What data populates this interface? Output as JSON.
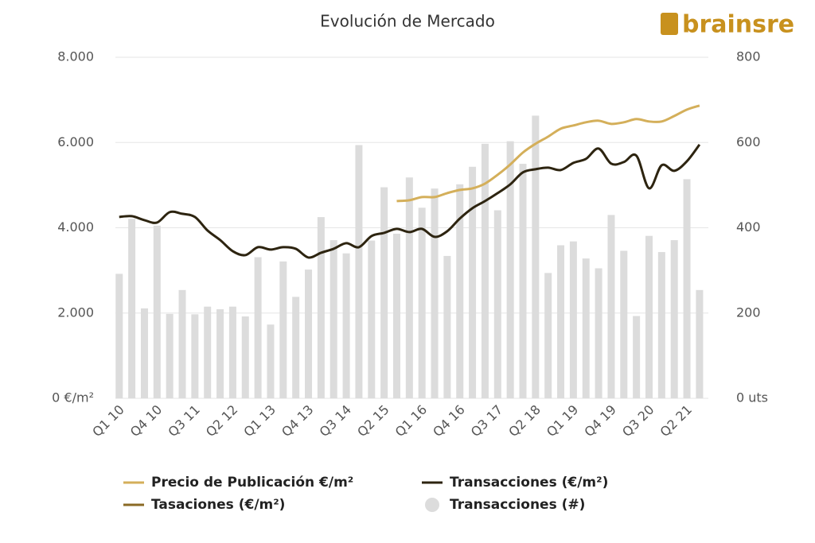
{
  "logo": "brainsre",
  "chart_data": {
    "type": "bar-line",
    "title": "Evolución de Mercado",
    "categories": [
      "Q1 10",
      null,
      null,
      "Q4 10",
      null,
      null,
      "Q3 11",
      null,
      null,
      "Q2 12",
      null,
      null,
      "Q1 13",
      null,
      null,
      "Q4 13",
      null,
      null,
      "Q3 14",
      null,
      null,
      "Q2 15",
      null,
      null,
      "Q1 16",
      null,
      null,
      "Q4 16",
      null,
      null,
      "Q3 17",
      null,
      null,
      "Q2 18",
      null,
      null,
      "Q1 19",
      null,
      null,
      "Q4 19",
      null,
      null,
      "Q3 20",
      null,
      null,
      "Q2 21",
      null
    ],
    "series": [
      {
        "name": "Precio de Publicación €/m²",
        "type": "line",
        "color": "#d4af5a",
        "values": [
          null,
          null,
          null,
          null,
          null,
          null,
          null,
          null,
          null,
          null,
          null,
          null,
          null,
          null,
          null,
          null,
          null,
          null,
          null,
          null,
          null,
          null,
          4627,
          4646,
          4720,
          4720,
          4813,
          4888,
          4925,
          5037,
          5243,
          5485,
          5765,
          5970,
          6138,
          6325,
          6399,
          6474,
          6511,
          6437,
          6474,
          6549,
          6493,
          6493,
          6623,
          6772,
          6866
        ]
      },
      {
        "name": "Transacciones (€/m²)",
        "type": "line",
        "color": "#2d2410",
        "values": [
          4254,
          4272,
          4179,
          4123,
          4366,
          4328,
          4254,
          3937,
          3713,
          3451,
          3358,
          3545,
          3489,
          3545,
          3507,
          3302,
          3414,
          3507,
          3638,
          3545,
          3806,
          3881,
          3974,
          3899,
          3974,
          3787,
          3918,
          4216,
          4459,
          4627,
          4813,
          5019,
          5299,
          5373,
          5410,
          5354,
          5522,
          5616,
          5858,
          5504,
          5541,
          5690,
          4925,
          5466,
          5336,
          5560,
          5951
        ]
      },
      {
        "name": "Tasaciones (€/m²)",
        "type": "line",
        "color": "#8a6a24",
        "values": [
          null,
          null,
          null,
          null,
          null,
          null,
          null,
          null,
          null,
          null,
          null,
          null,
          null,
          null,
          null,
          null,
          null,
          null,
          null,
          null,
          null,
          null,
          null,
          null,
          null,
          null,
          null,
          null,
          null,
          null,
          null,
          null,
          null,
          null,
          null,
          null,
          null,
          null,
          null,
          null,
          null,
          null,
          null,
          null,
          null,
          null,
          null
        ]
      },
      {
        "name": "Transacciones (#)",
        "type": "bar",
        "axis": "y2",
        "color": "#dcdcdc",
        "values": [
          292,
          421,
          211,
          405,
          198,
          254,
          197,
          215,
          209,
          215,
          192,
          331,
          173,
          321,
          238,
          302,
          425,
          371,
          340,
          594,
          370,
          495,
          386,
          518,
          447,
          492,
          334,
          502,
          543,
          597,
          441,
          603,
          550,
          663,
          294,
          359,
          368,
          328,
          305,
          430,
          346,
          193,
          381,
          343,
          371,
          514,
          254
        ]
      }
    ],
    "ylim": [
      0,
      8000
    ],
    "yticks": [
      {
        "value": 0,
        "label": "0 €/m²"
      },
      {
        "value": 2000,
        "label": "2.000"
      },
      {
        "value": 4000,
        "label": "4.000"
      },
      {
        "value": 6000,
        "label": "6.000"
      },
      {
        "value": 8000,
        "label": "8.000"
      }
    ],
    "y2lim": [
      0,
      800
    ],
    "y2ticks": [
      {
        "value": 0,
        "label": "0 uts"
      },
      200,
      400,
      600,
      800
    ],
    "grid": true
  }
}
